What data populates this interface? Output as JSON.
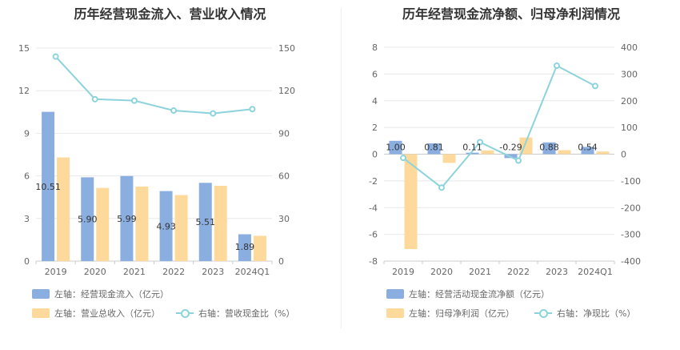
{
  "colors": {
    "bar1": "#8aaedf",
    "bar2": "#fdd99b",
    "line": "#8dd3dc",
    "grid": "#e8e8e8",
    "axis": "#cccccc"
  },
  "chart_data": [
    {
      "type": "bar",
      "title": "历年经营现金流入、营业收入情况",
      "categories": [
        "2019",
        "2020",
        "2021",
        "2022",
        "2023",
        "2024Q1"
      ],
      "left_axis": {
        "ylim": [
          0,
          15
        ],
        "ticks": [
          "0",
          "3",
          "6",
          "9",
          "12",
          "15"
        ]
      },
      "right_axis": {
        "ylim": [
          0,
          150
        ],
        "ticks": [
          "0",
          "30",
          "60",
          "90",
          "120",
          "150"
        ]
      },
      "series": [
        {
          "name": "左轴：经营现金流入（亿元）",
          "axis": "left",
          "kind": "bar",
          "values": [
            10.51,
            5.9,
            5.99,
            4.93,
            5.51,
            1.89
          ],
          "labels": [
            "10.51",
            "5.90",
            "5.99",
            "4.93",
            "5.51",
            "1.89"
          ]
        },
        {
          "name": "左轴：营业总收入（亿元）",
          "axis": "left",
          "kind": "bar",
          "values": [
            7.3,
            5.15,
            5.25,
            4.65,
            5.3,
            1.78
          ]
        },
        {
          "name": "右轴：营收现金比（%）",
          "axis": "right",
          "kind": "line",
          "values": [
            144,
            114,
            113,
            106,
            104,
            107
          ]
        }
      ]
    },
    {
      "type": "bar",
      "title": "历年经营现金流净额、归母净利润情况",
      "categories": [
        "2019",
        "2020",
        "2021",
        "2022",
        "2023",
        "2024Q1"
      ],
      "left_axis": {
        "ylim": [
          -8,
          8
        ],
        "ticks": [
          "-8",
          "-6",
          "-4",
          "-2",
          "0",
          "2",
          "4",
          "6",
          "8"
        ]
      },
      "right_axis": {
        "ylim": [
          -400,
          400
        ],
        "ticks": [
          "-400",
          "-300",
          "-200",
          "-100",
          "0",
          "100",
          "200",
          "300",
          "400"
        ]
      },
      "series": [
        {
          "name": "左轴：经营活动现金流净额（亿元）",
          "axis": "left",
          "kind": "bar",
          "values": [
            1.0,
            0.81,
            0.11,
            -0.29,
            0.88,
            0.54
          ],
          "labels": [
            "1.00",
            "0.81",
            "0.11",
            "-0.29",
            "0.88",
            "0.54"
          ]
        },
        {
          "name": "左轴：归母净利润（亿元）",
          "axis": "left",
          "kind": "bar",
          "values": [
            -7.1,
            -0.65,
            0.28,
            1.25,
            0.3,
            0.2
          ]
        },
        {
          "name": "右轴：净现比（%）",
          "axis": "right",
          "kind": "line",
          "values": [
            -14,
            -125,
            45,
            -24,
            331,
            255
          ]
        }
      ]
    }
  ]
}
